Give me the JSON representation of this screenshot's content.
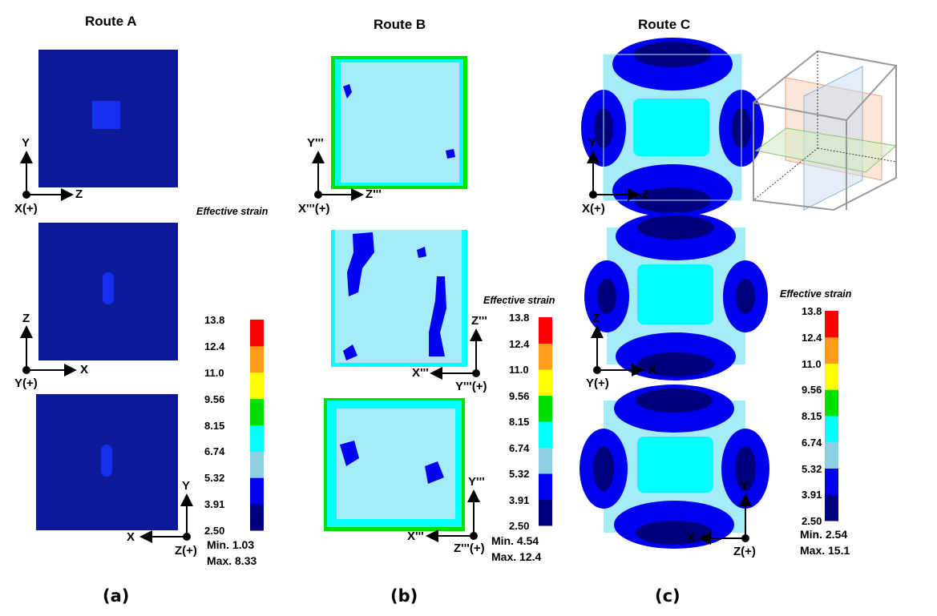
{
  "colorbar_colors": [
    "#00007f",
    "#0000f0",
    "#8ecfe6",
    "#00ffff",
    "#00e000",
    "#ffff00",
    "#ff9a1a",
    "#ff0000"
  ],
  "colorbar_title": "Effective strain",
  "colorbar_ticks": [
    "13.8",
    "12.4",
    "11.0",
    "9.56",
    "8.15",
    "6.74",
    "5.32",
    "3.91",
    "2.50"
  ],
  "panels": [
    {
      "title": "Route A",
      "label": "(a)",
      "min": "Min. 1.03",
      "max": "Max. 8.33",
      "axes": [
        [
          "Y",
          "Z",
          "X(+)"
        ],
        [
          "Z",
          "X",
          "Y(+)"
        ],
        [
          "Y",
          "X",
          "Z(+)"
        ]
      ]
    },
    {
      "title": "Route B",
      "label": "(b)",
      "min": "Min. 4.54",
      "max": "Max. 12.4",
      "axes": [
        [
          "Y'''",
          "Z'''",
          "X'''(+)"
        ],
        [
          "Z'''",
          "X'''",
          "Y'''(+)"
        ],
        [
          "Y'''",
          "X'''",
          "Z'''(+)"
        ]
      ]
    },
    {
      "title": "Route C",
      "label": "(c)",
      "min": "Min. 2.54",
      "max": "Max. 15.1",
      "axes": [
        [
          "Y",
          "Z",
          "X(+)"
        ],
        [
          "Z",
          "X",
          "Y(+)"
        ],
        [
          "Y",
          "X",
          "Z(+)"
        ]
      ]
    }
  ]
}
